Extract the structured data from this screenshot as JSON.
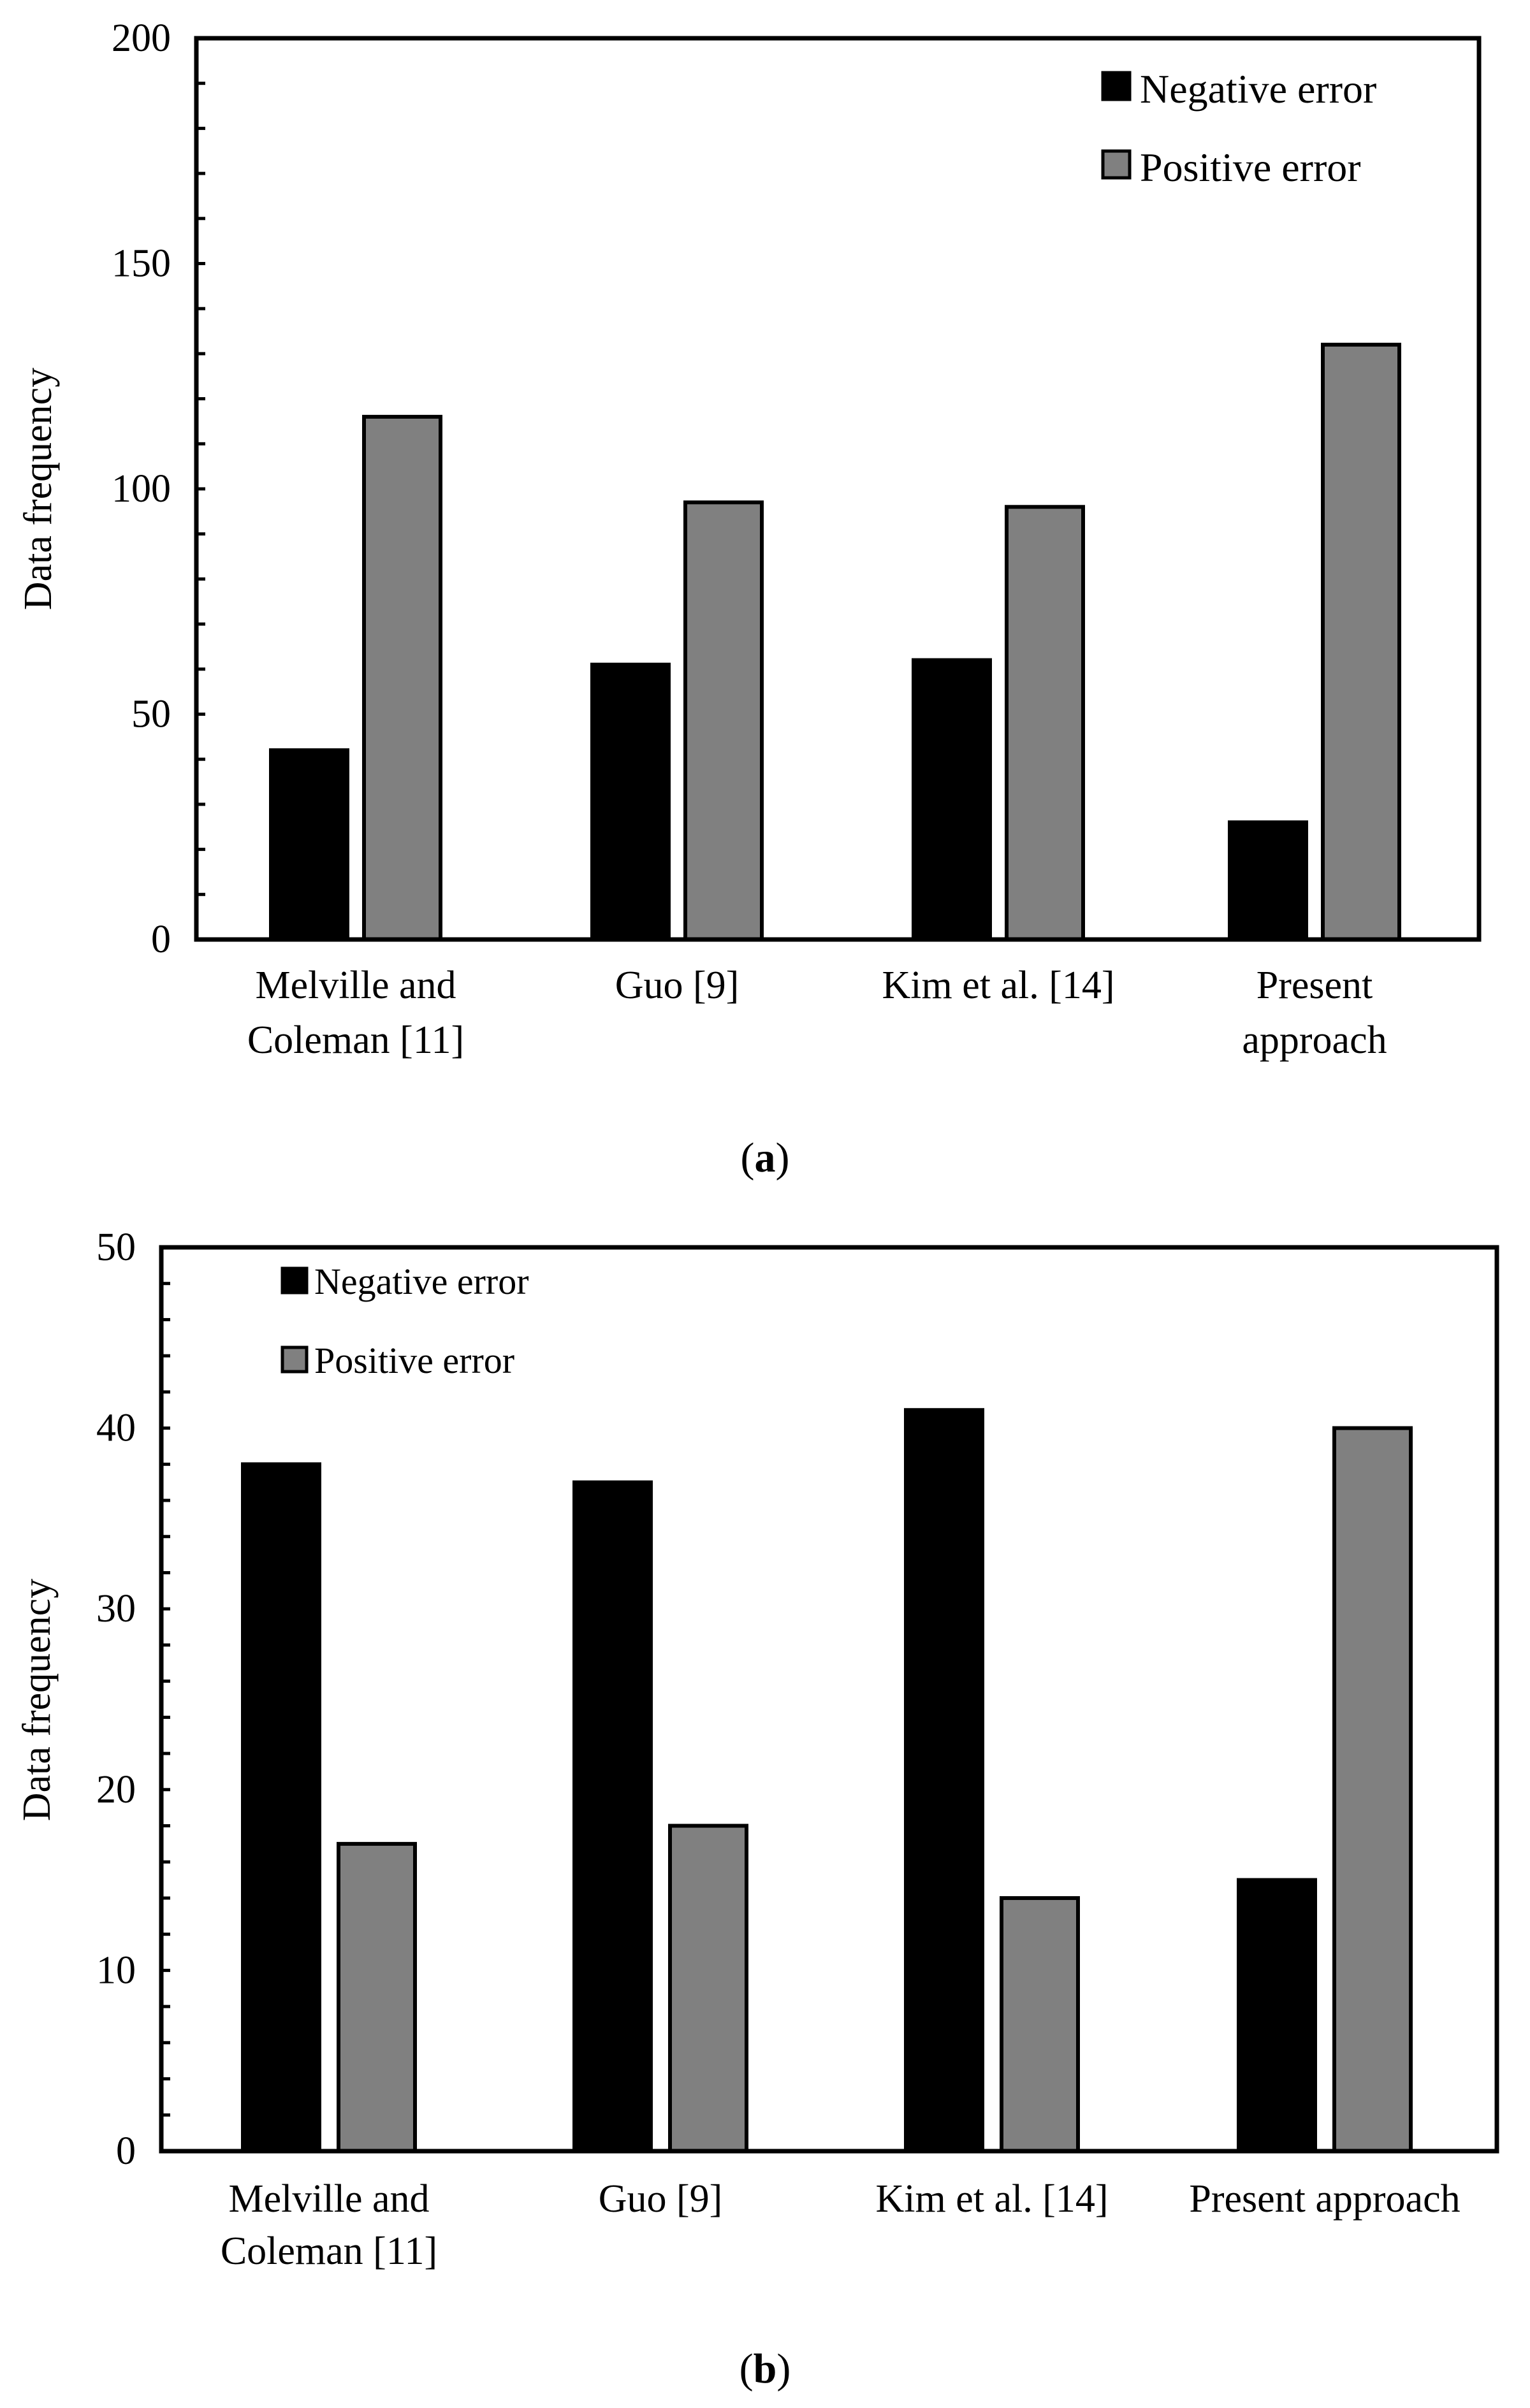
{
  "colors": {
    "negative": "#000000",
    "positive": "#808080",
    "frame": "#000000"
  },
  "chart_data": [
    {
      "id": "a",
      "type": "bar",
      "caption_open": "(",
      "caption_letter": "a",
      "caption_close": ")",
      "ylabel": "Data frequency",
      "xlabel": "",
      "ylim": [
        0,
        200
      ],
      "y_ticks": [
        "0",
        "50",
        "100",
        "150",
        "200"
      ],
      "categories": [
        [
          "Melville and",
          "Coleman [11]"
        ],
        [
          "Guo [9]"
        ],
        [
          "Kim et al. [14]"
        ],
        [
          "Present",
          "approach"
        ]
      ],
      "series": [
        {
          "name": "Negative error",
          "values": [
            42,
            61,
            62,
            26
          ]
        },
        {
          "name": "Positive error",
          "values": [
            116,
            97,
            96,
            132
          ]
        }
      ]
    },
    {
      "id": "b",
      "type": "bar",
      "caption_open": "(",
      "caption_letter": "b",
      "caption_close": ")",
      "ylabel": "Data frequency",
      "xlabel": "",
      "ylim": [
        0,
        50
      ],
      "y_ticks": [
        "0",
        "10",
        "20",
        "30",
        "40",
        "50"
      ],
      "categories": [
        [
          "Melville and",
          "Coleman [11]"
        ],
        [
          "Guo [9]"
        ],
        [
          "Kim et al. [14]"
        ],
        [
          "Present approach"
        ]
      ],
      "series": [
        {
          "name": "Negative error",
          "values": [
            38,
            37,
            41,
            15
          ]
        },
        {
          "name": "Positive error",
          "values": [
            17,
            18,
            14,
            40
          ]
        }
      ]
    }
  ]
}
